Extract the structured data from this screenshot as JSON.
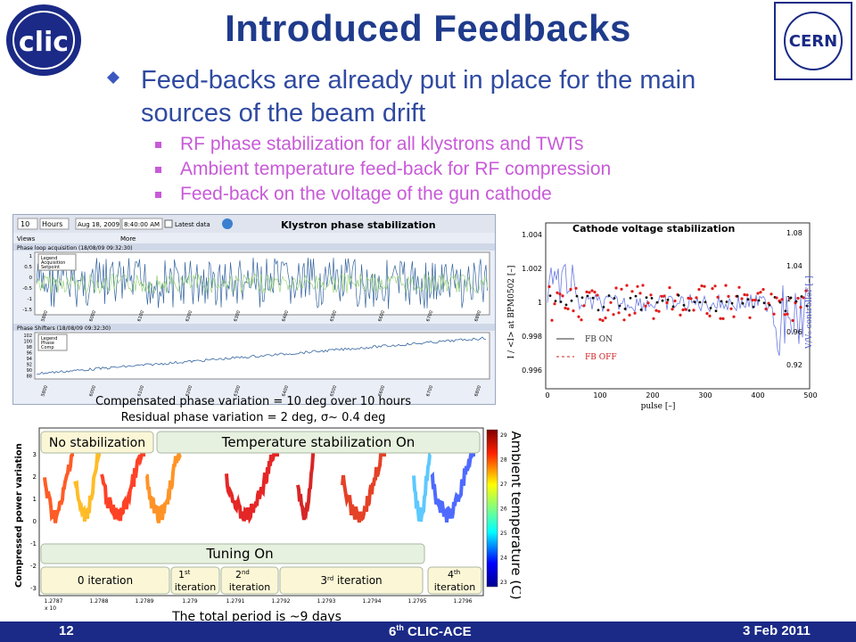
{
  "slide": {
    "title": "Introduced Feedbacks",
    "bullet_main": "Feed-backs are already put in place for the main sources of the beam drift",
    "sub_bullets": [
      "RF phase stabilization for all klystrons and TWTs",
      "Ambient temperature feed-back for RF compression",
      "Feed-back on the voltage of the gun cathode"
    ]
  },
  "logos": {
    "left": "clic",
    "right": "CERN"
  },
  "klystron_panel": {
    "title": "Klystron phase stabilization",
    "toolbar_value": "10",
    "toolbar_unit": "Hours",
    "toolbar_date": "Aug 18, 2009",
    "toolbar_time": "8:40:00 AM",
    "toolbar_latest": "Latest data",
    "toolbar_views": "Views",
    "toolbar_more": "More",
    "plot1_title": "Phase loop acquisition (18/08/09 09:32:30)",
    "plot1_legend": [
      "Legend",
      "Acquisition",
      "Setpoint"
    ],
    "plot2_title": "Phase Shifters (18/08/09 09:32:30)",
    "plot2_legend": [
      "Legend",
      "Phase",
      "Comp"
    ],
    "plot1_yticks": [
      "1",
      "0.5",
      "0",
      "-0.5",
      "-1",
      "-1.5"
    ],
    "plot2_yticks": [
      "102",
      "100",
      "98",
      "96",
      "94",
      "92",
      "90",
      "88"
    ],
    "xticks": [
      "5800",
      "6000",
      "6100",
      "6200",
      "6300",
      "6400",
      "6500",
      "6600",
      "6700",
      "6800"
    ]
  },
  "klystron_captions": [
    "Compensated phase variation = 10 deg over 10 hours",
    "Residual phase variation = 2 deg, σ~ 0.4 deg"
  ],
  "cathode_panel": {
    "title": "Cathode voltage stabilization",
    "ylabel_left": "I / <I> at BPM0502 [–]",
    "ylabel_right": "V/V₀ controller [–]",
    "xlabel": "pulse [–]",
    "yticks_left": [
      "1.004",
      "1.002",
      "1",
      "0.998",
      "0.996"
    ],
    "yticks_right": [
      "1.08",
      "1.04",
      "1",
      "0.96",
      "0.92"
    ],
    "xticks": [
      "0",
      "100",
      "200",
      "300",
      "400",
      "500"
    ],
    "legend": [
      "FB ON",
      "FB OFF"
    ]
  },
  "temperature_panel": {
    "ylabel": "Compressed power variation",
    "cbar_label": "Ambient temperature (C)",
    "cbar_ticks": [
      "29",
      "28",
      "27",
      "26",
      "25",
      "24",
      "23"
    ],
    "yticks": [
      "3",
      "2",
      "1",
      "0",
      "-1",
      "-2",
      "-3"
    ],
    "xticks": [
      "1.2787",
      "1.2788",
      "1.2789",
      "1.279",
      "1.2791",
      "1.2792",
      "1.2793",
      "1.2794",
      "1.2795",
      "1.2796"
    ],
    "x_exp": "x 10",
    "box_no_stab": "No stabilization",
    "box_temp_stab": "Temperature stabilization On",
    "box_tuning": "Tuning On",
    "iter0": "0 iteration",
    "iter1a": "1",
    "iter1sup": "st",
    "iter1b": "iteration",
    "iter2a": "2",
    "iter2sup": "nd",
    "iter2b": "iteration",
    "iter3a": "3",
    "iter3sup": "rd",
    "iter3b": " iteration",
    "iter4a": "4",
    "iter4sup": "th",
    "iter4b": "iteration",
    "total_period": "The total period is ~9 days"
  },
  "footer": {
    "page": "12",
    "event_num": "6",
    "event_sup": "th",
    "event_name": " CLIC-ACE",
    "date": "3 Feb 2011"
  },
  "colors": {
    "title": "#1f3b8c",
    "bullet_main": "#2f4aa0",
    "bullet_sub": "#c85ad8",
    "footer_bg": "#1a2a86"
  }
}
